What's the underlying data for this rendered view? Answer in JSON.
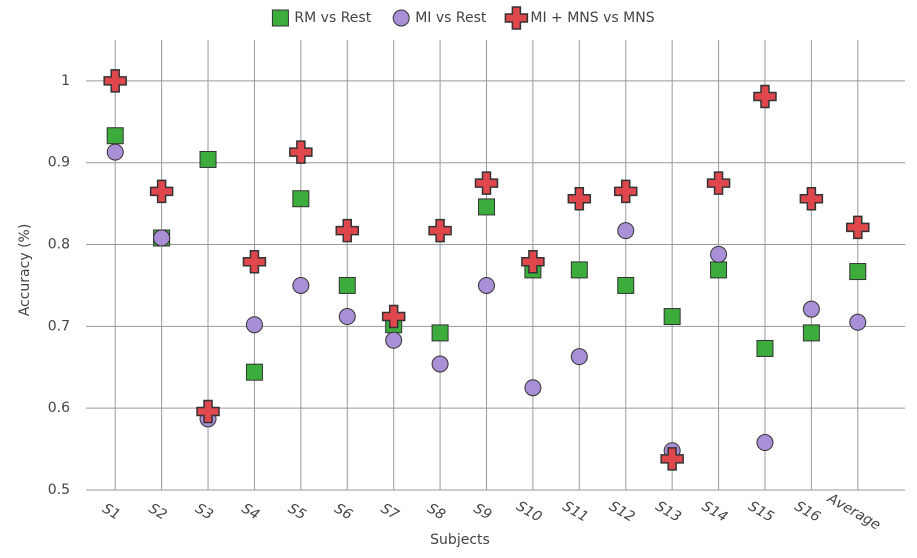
{
  "chart_data": {
    "type": "scatter",
    "x_label": "Subjects",
    "y_label": "Accuracy (%)",
    "categories": [
      "S1",
      "S2",
      "S3",
      "S4",
      "S5",
      "S6",
      "S7",
      "S8",
      "S9",
      "S10",
      "S11",
      "S12",
      "S13",
      "S14",
      "S15",
      "S16",
      "Average"
    ],
    "ylim": [
      0.5,
      1.05
    ],
    "yticks": [
      0.5,
      0.6,
      0.7,
      0.8,
      0.9,
      1
    ],
    "grid": true,
    "legend": "top",
    "series": [
      {
        "name": "RM vs Rest",
        "color": "#3cac3c",
        "marker": "square",
        "values": [
          0.933,
          0.808,
          0.904,
          0.644,
          0.856,
          0.75,
          0.702,
          0.692,
          0.846,
          0.769,
          0.769,
          0.75,
          0.712,
          0.769,
          0.673,
          0.692,
          0.767
        ]
      },
      {
        "name": "MI vs Rest",
        "color": "#a98fd6",
        "marker": "circle",
        "values": [
          0.913,
          0.808,
          0.587,
          0.702,
          0.75,
          0.712,
          0.683,
          0.654,
          0.75,
          0.625,
          0.663,
          0.817,
          0.548,
          0.788,
          0.558,
          0.721,
          0.705
        ]
      },
      {
        "name": "MI + MNS vs MNS",
        "color": "#e0474c",
        "marker": "cross",
        "values": [
          1.0,
          0.865,
          0.596,
          0.779,
          0.913,
          0.817,
          0.712,
          0.817,
          0.875,
          0.779,
          0.856,
          0.865,
          0.538,
          0.875,
          0.981,
          0.856,
          0.821
        ]
      }
    ]
  }
}
